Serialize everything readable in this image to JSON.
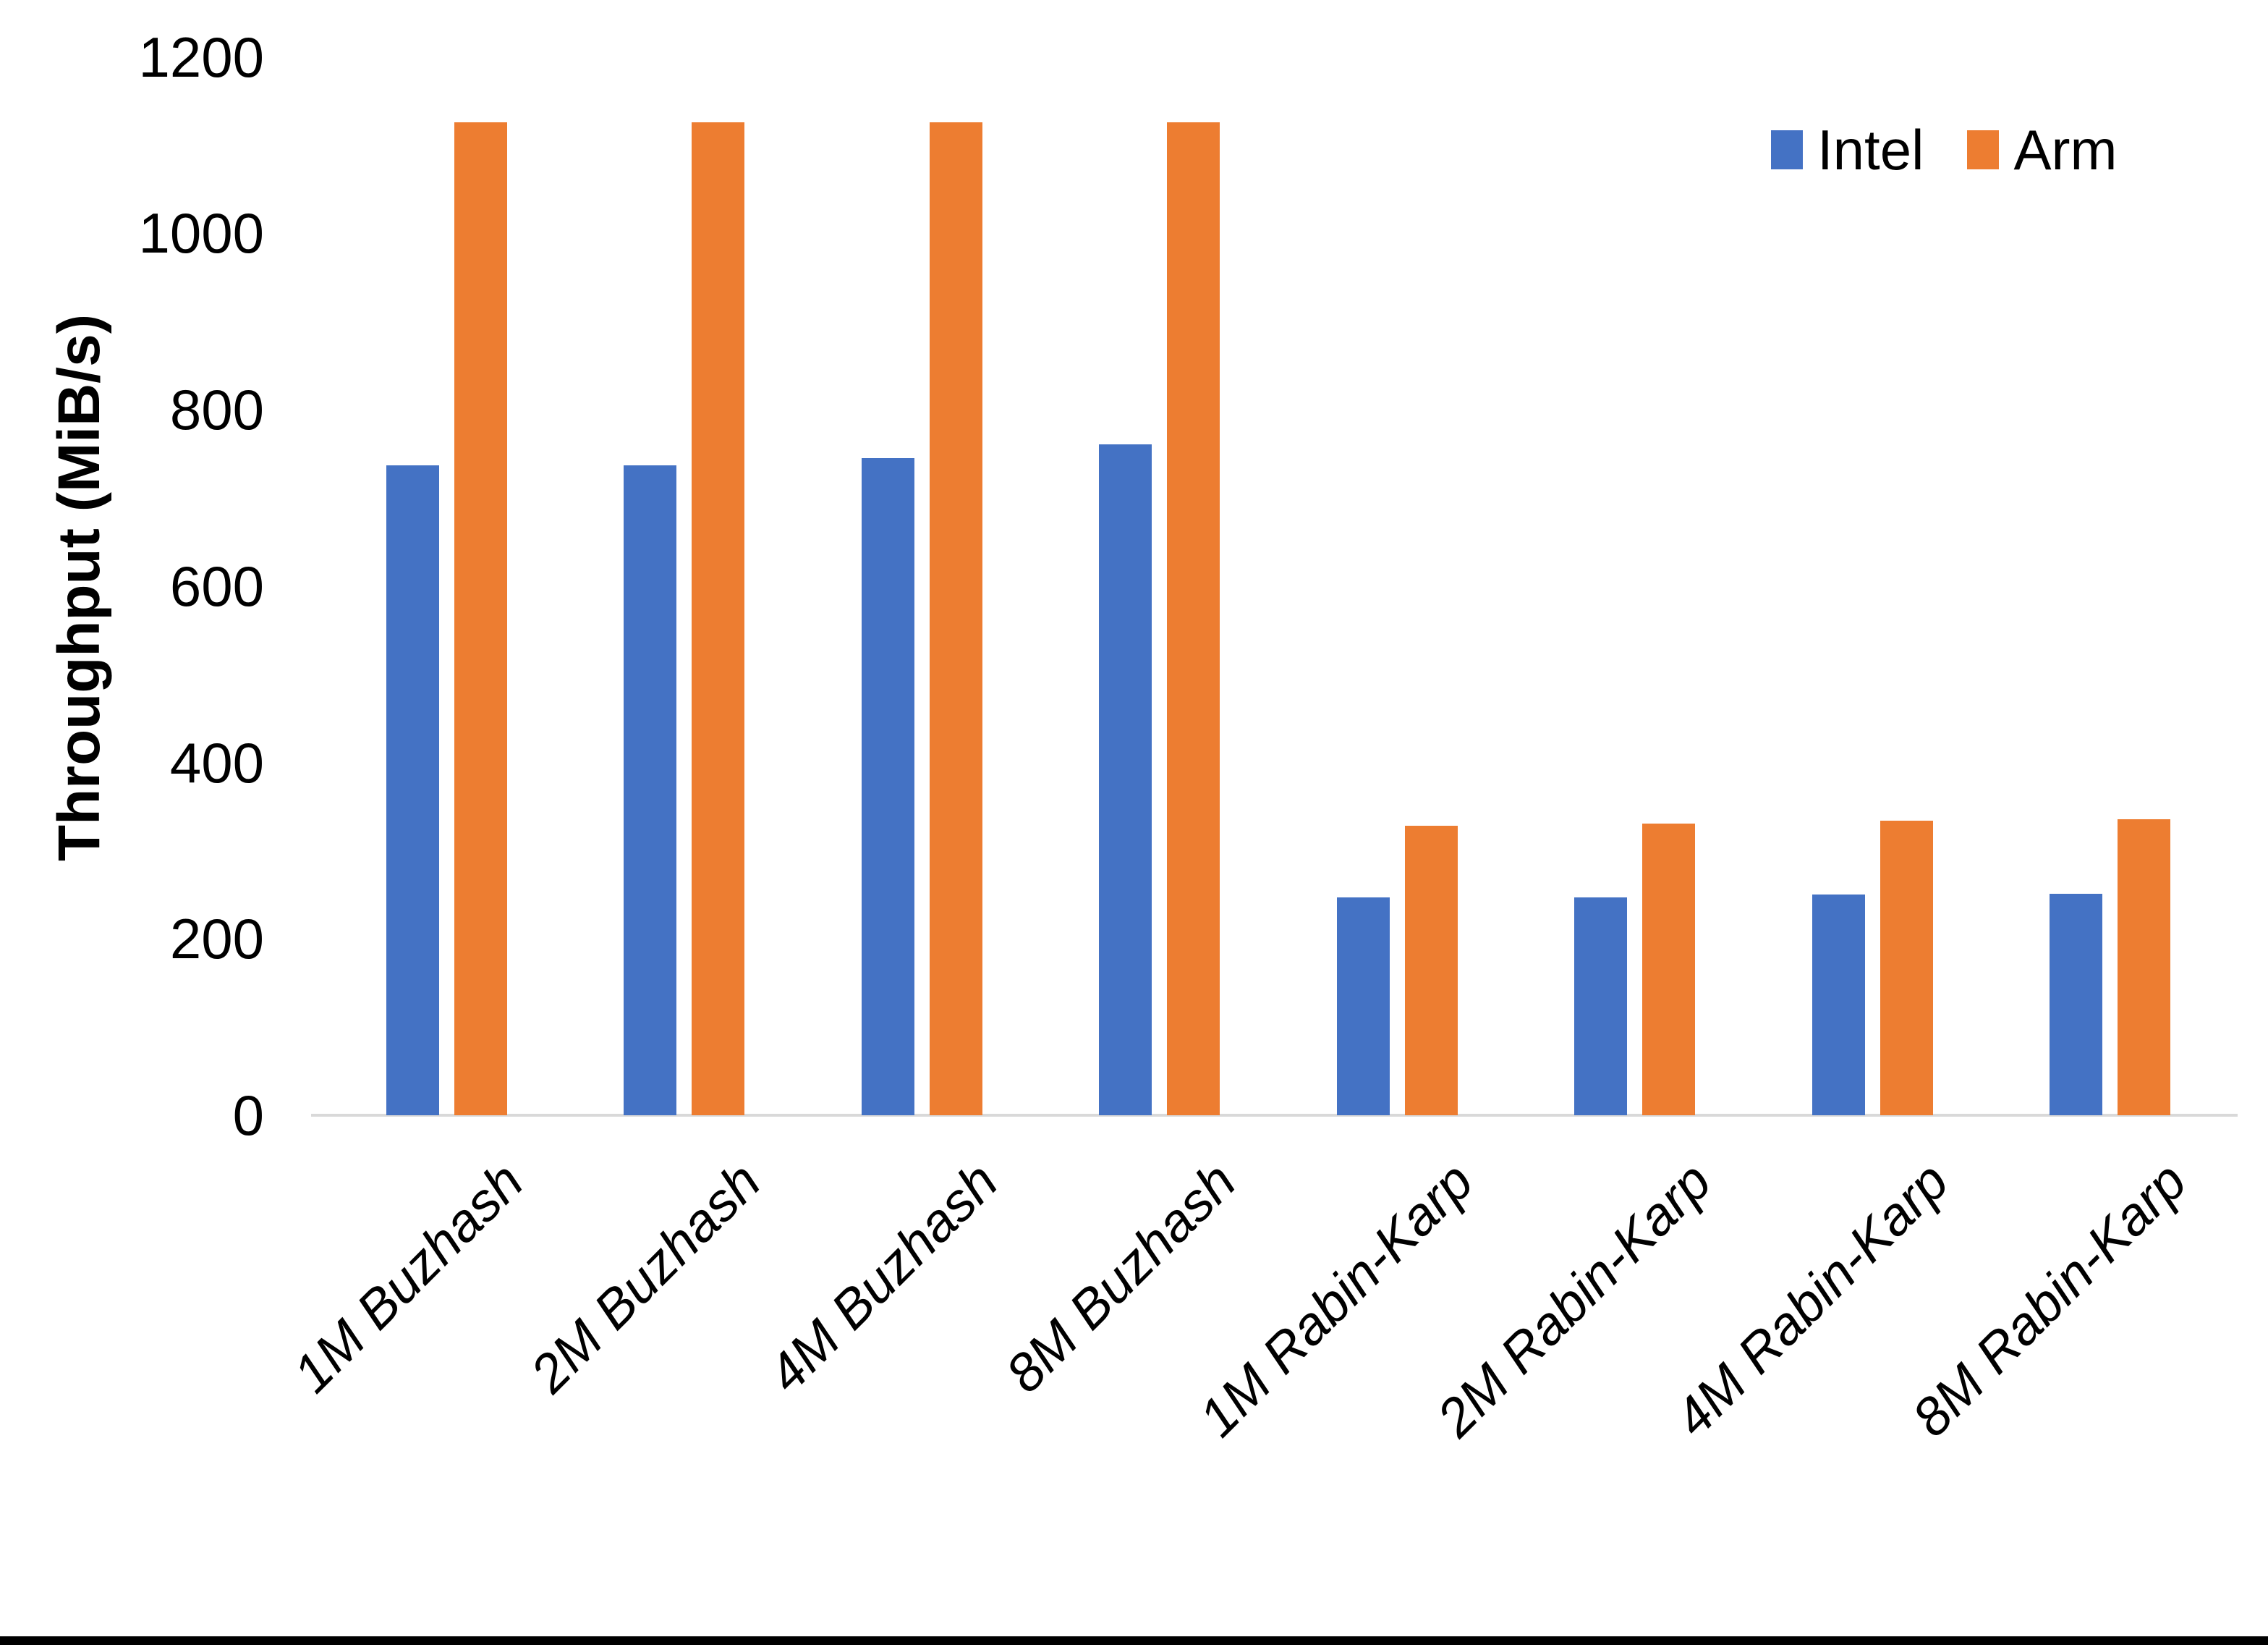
{
  "chart_data": {
    "type": "bar",
    "categories": [
      "1M Buzhash",
      "2M Buzhash",
      "4M Buzhash",
      "8M Buzhash",
      "1M Rabin-Karp",
      "2M Rabin-Karp",
      "4M Rabin-Karp",
      "8M Rabin-Karp"
    ],
    "series": [
      {
        "name": "Intel",
        "color": "#4472C4",
        "values": [
          737,
          737,
          745,
          761,
          247,
          247,
          250,
          251
        ]
      },
      {
        "name": "Arm",
        "color": "#ED7D31",
        "values": [
          1126,
          1126,
          1126,
          1126,
          328,
          331,
          334,
          336
        ]
      }
    ],
    "title": "",
    "xlabel": "",
    "ylabel": "Throughput (MiB/s)",
    "ylim": [
      0,
      1200
    ],
    "yticks": [
      0,
      200,
      400,
      600,
      800,
      1000,
      1200
    ],
    "grid": false,
    "legend_position": "top-right",
    "axis_line_color": "#d9d9d9",
    "category_label_style": "italic-rotated-45",
    "background_color": "#ffffff",
    "bottom_border_color": "#000000"
  }
}
